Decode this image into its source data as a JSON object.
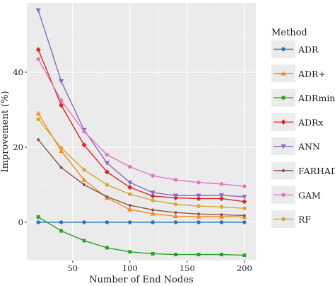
{
  "chart_data": {
    "type": "line",
    "title": "",
    "xlabel": "Number of End Nodes",
    "ylabel": "Improvement (%)",
    "xlim": [
      10,
      210
    ],
    "ylim": [
      -10.2,
      58.5
    ],
    "x_ticks": [
      50,
      100,
      150,
      200
    ],
    "y_ticks": [
      0,
      20,
      40
    ],
    "grid": true,
    "legend_title": "Method",
    "legend_position": "right",
    "x": [
      20,
      40,
      60,
      80,
      100,
      120,
      140,
      160,
      180,
      200
    ],
    "series": [
      {
        "name": "ADR",
        "color": "#2a76b7",
        "marker": "circle",
        "values": [
          0.0,
          0.0,
          0.0,
          0.0,
          0.0,
          0.0,
          0.0,
          0.0,
          0.0,
          0.0
        ]
      },
      {
        "name": "ADR+",
        "color": "#f58a1f",
        "marker": "triangle-up",
        "values": [
          29.0,
          19.0,
          11.3,
          6.5,
          3.4,
          2.3,
          1.6,
          1.5,
          1.5,
          1.4
        ]
      },
      {
        "name": "ADRmin",
        "color": "#2ca02c",
        "marker": "square",
        "values": [
          1.4,
          -2.3,
          -4.9,
          -6.8,
          -7.9,
          -8.4,
          -8.6,
          -8.6,
          -8.6,
          -8.8
        ]
      },
      {
        "name": "ADRx",
        "color": "#d62728",
        "marker": "diamond",
        "values": [
          46.0,
          31.2,
          20.6,
          13.4,
          9.3,
          7.0,
          6.5,
          6.3,
          6.3,
          5.5
        ]
      },
      {
        "name": "ANN",
        "color": "#8c67c4",
        "marker": "triangle-down",
        "values": [
          56.5,
          37.6,
          24.6,
          15.8,
          10.6,
          7.9,
          7.1,
          7.1,
          7.2,
          6.8
        ]
      },
      {
        "name": "FARHAD",
        "color": "#8c564b",
        "marker": "circle-small",
        "values": [
          22.0,
          14.6,
          10.0,
          6.8,
          4.5,
          3.3,
          2.6,
          2.2,
          2.0,
          1.8
        ]
      },
      {
        "name": "GAM",
        "color": "#e377c2",
        "marker": "circle",
        "values": [
          43.5,
          32.5,
          24.2,
          18.0,
          14.8,
          12.4,
          11.3,
          10.6,
          10.2,
          9.6
        ]
      },
      {
        "name": "RF",
        "color": "#d4a92f",
        "marker": "circle",
        "values": [
          27.5,
          19.8,
          14.0,
          10.0,
          7.5,
          5.8,
          4.8,
          4.3,
          4.1,
          3.7
        ]
      }
    ]
  }
}
